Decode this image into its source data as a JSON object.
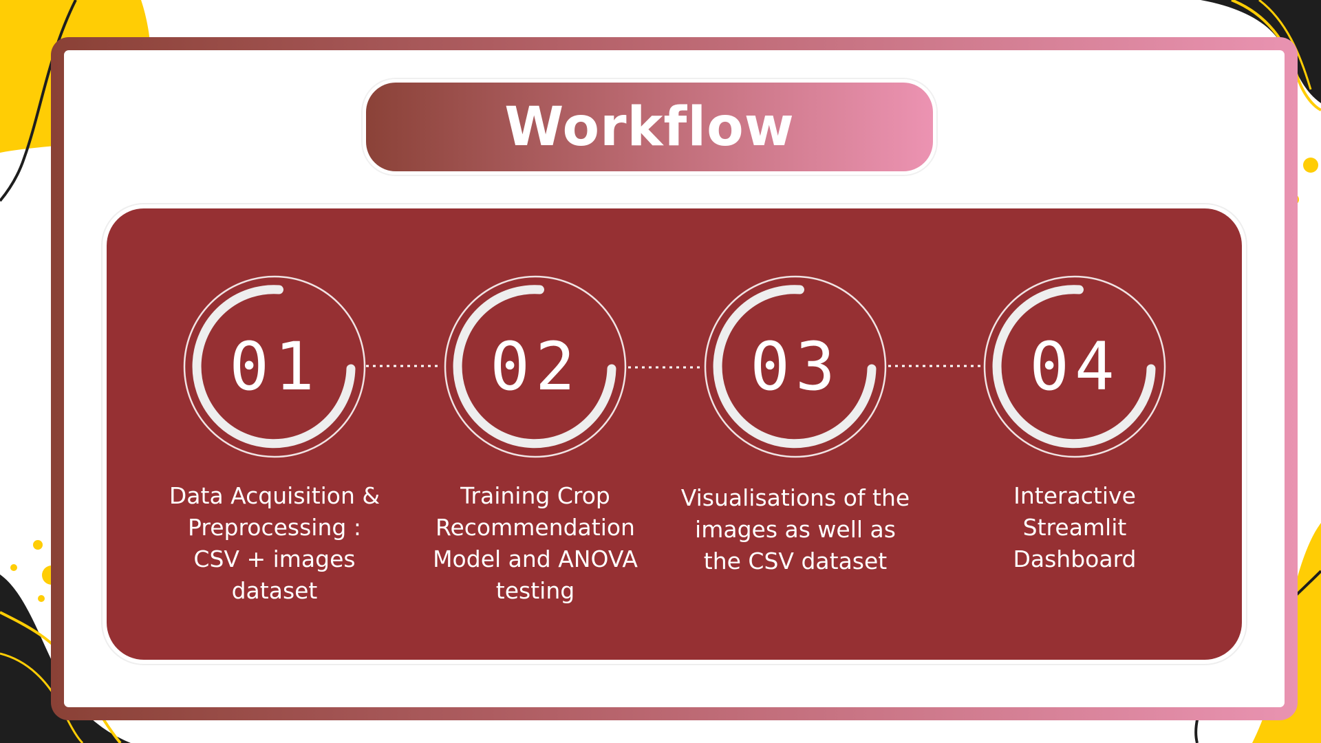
{
  "slide": {
    "title": "Workflow"
  },
  "steps": [
    {
      "number": "01",
      "label": "Data Acquisition &\nPreprocessing :\nCSV + images\ndataset"
    },
    {
      "number": "02",
      "label": "Training Crop\nRecommendation\nModel and ANOVA\ntesting"
    },
    {
      "number": "03",
      "label": "Visualisations of the\nimages as well as\nthe CSV dataset"
    },
    {
      "number": "04",
      "label": "Interactive\nStreamlit\nDashboard"
    }
  ],
  "colors": {
    "panel": "#963033",
    "accent_yellow": "#ffcd05",
    "gradient_start": "#8b4238",
    "gradient_end": "#ec93b2"
  }
}
